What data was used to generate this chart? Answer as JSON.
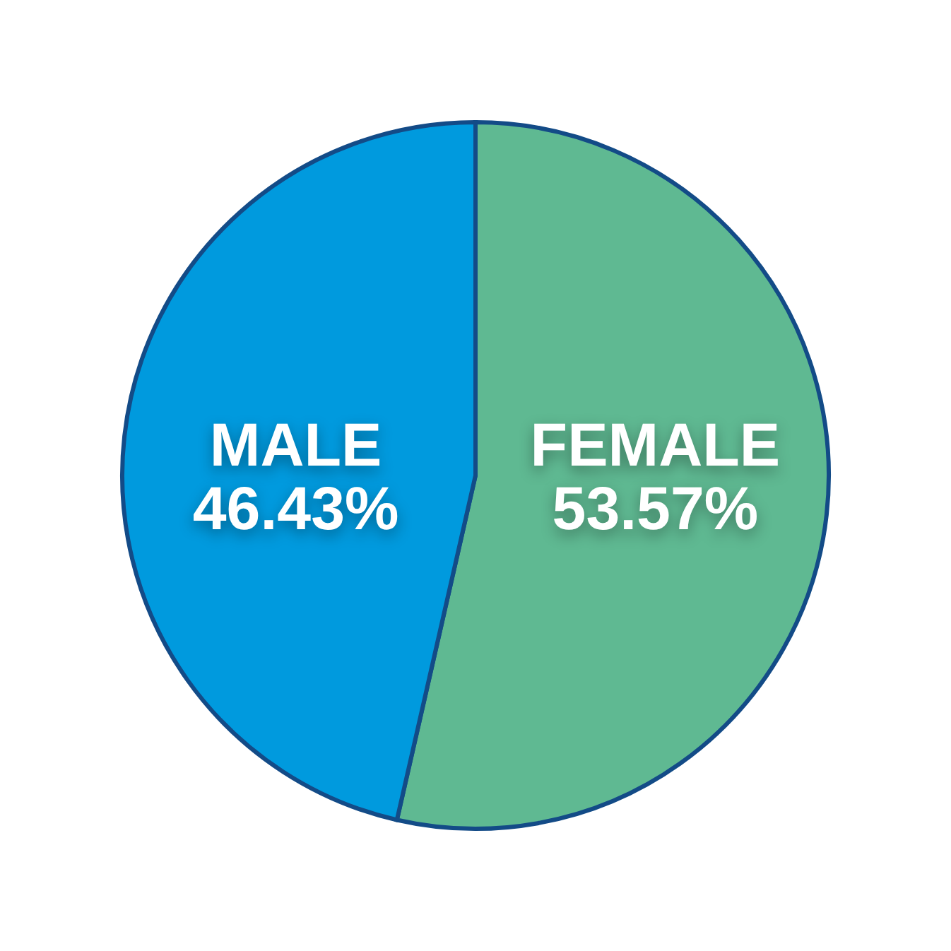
{
  "chart_data": {
    "type": "pie",
    "categories": [
      "FEMALE",
      "MALE"
    ],
    "values": [
      53.57,
      46.43
    ],
    "value_labels": [
      "53.57%",
      "46.43%"
    ],
    "colors": [
      "#5fb992",
      "#009ade"
    ]
  }
}
